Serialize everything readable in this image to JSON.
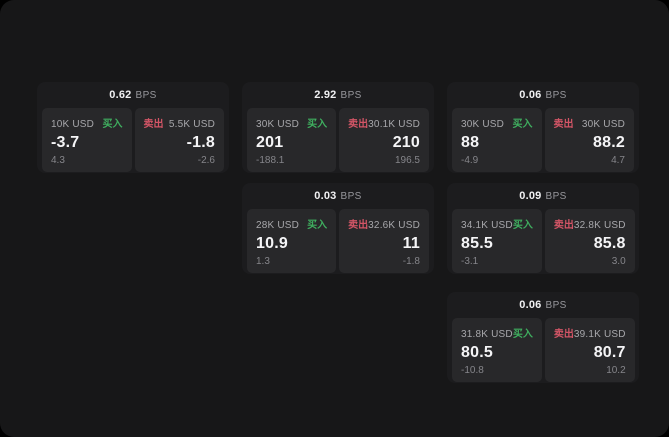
{
  "labels": {
    "bps_unit": "BPS",
    "buy": "买入",
    "sell": "卖出"
  },
  "colors": {
    "page_bg": "#171718",
    "card_bg": "#1c1c1e",
    "tile_bg": "#28282a",
    "buy_green": "#3fae5f",
    "sell_red": "#d25566",
    "value_text": "#f5f5f7",
    "muted_text": "#85858a"
  },
  "cards": [
    {
      "col": 0,
      "row": 0,
      "bps": "0.62",
      "buy": {
        "amount": "10K USD",
        "value": "-3.7",
        "change": "4.3"
      },
      "sell": {
        "amount": "5.5K USD",
        "value": "-1.8",
        "change": "-2.6"
      }
    },
    {
      "col": 1,
      "row": 0,
      "bps": "2.92",
      "buy": {
        "amount": "30K USD",
        "value": "201",
        "change": "-188.1"
      },
      "sell": {
        "amount": "30.1K USD",
        "value": "210",
        "change": "196.5"
      }
    },
    {
      "col": 2,
      "row": 0,
      "bps": "0.06",
      "buy": {
        "amount": "30K USD",
        "value": "88",
        "change": "-4.9"
      },
      "sell": {
        "amount": "30K USD",
        "value": "88.2",
        "change": "4.7"
      }
    },
    {
      "col": 1,
      "row": 1,
      "bps": "0.03",
      "buy": {
        "amount": "28K USD",
        "value": "10.9",
        "change": "1.3"
      },
      "sell": {
        "amount": "32.6K USD",
        "value": "11",
        "change": "-1.8"
      }
    },
    {
      "col": 2,
      "row": 1,
      "bps": "0.09",
      "buy": {
        "amount": "34.1K USD",
        "value": "85.5",
        "change": "-3.1"
      },
      "sell": {
        "amount": "32.8K USD",
        "value": "85.8",
        "change": "3.0"
      }
    },
    {
      "col": 2,
      "row": 2,
      "bps": "0.06",
      "buy": {
        "amount": "31.8K USD",
        "value": "80.5",
        "change": "-10.8"
      },
      "sell": {
        "amount": "39.1K USD",
        "value": "80.7",
        "change": "10.2"
      }
    }
  ]
}
